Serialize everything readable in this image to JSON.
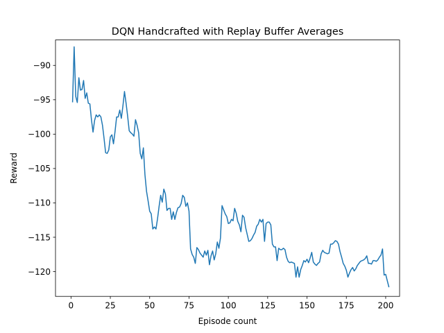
{
  "chart_data": {
    "type": "line",
    "title": "DQN Handcrafted with Replay Buffer Averages",
    "xlabel": "Episode count",
    "ylabel": "Reward",
    "xlim": [
      -9.85,
      208.85
    ],
    "ylim": [
      -123.6,
      -86.3
    ],
    "xticks": [
      0,
      25,
      50,
      75,
      100,
      125,
      150,
      175,
      200
    ],
    "yticks": [
      -90,
      -95,
      -100,
      -105,
      -110,
      -115,
      -120
    ],
    "xtick_labels": [
      "0",
      "25",
      "50",
      "75",
      "100",
      "125",
      "150",
      "175",
      "200"
    ],
    "ytick_labels": [
      "−90",
      "−95",
      "−100",
      "−105",
      "−110",
      "−115",
      "−120"
    ],
    "grid": false,
    "legend": "none",
    "series": [
      {
        "color": "#1f77b4",
        "x_start": 1,
        "y": [
          -95.3,
          -87.3,
          -94.5,
          -95.4,
          -91.8,
          -93.6,
          -93.5,
          -92.2,
          -94.8,
          -94.0,
          -95.5,
          -95.6,
          -97.9,
          -99.7,
          -98.0,
          -97.2,
          -97.5,
          -97.2,
          -97.5,
          -98.7,
          -100.6,
          -102.7,
          -102.8,
          -102.3,
          -100.4,
          -100.1,
          -101.4,
          -99.6,
          -97.5,
          -97.5,
          -96.5,
          -97.7,
          -95.9,
          -93.8,
          -95.5,
          -97.4,
          -99.5,
          -99.8,
          -100.0,
          -100.3,
          -97.9,
          -98.7,
          -99.8,
          -102.8,
          -103.6,
          -102.0,
          -105.9,
          -108.3,
          -109.7,
          -111.2,
          -111.6,
          -113.8,
          -113.5,
          -113.8,
          -112.3,
          -110.5,
          -108.9,
          -109.9,
          -108.0,
          -108.7,
          -111.1,
          -110.8,
          -110.8,
          -112.4,
          -111.3,
          -112.4,
          -111.4,
          -110.7,
          -110.6,
          -110.1,
          -108.9,
          -109.2,
          -110.5,
          -110.0,
          -111.2,
          -116.7,
          -117.5,
          -117.9,
          -118.8,
          -116.5,
          -116.8,
          -117.3,
          -117.6,
          -117.9,
          -117.0,
          -117.6,
          -116.9,
          -119.0,
          -117.7,
          -117.0,
          -118.3,
          -117.4,
          -115.7,
          -116.6,
          -115.1,
          -110.4,
          -111.0,
          -111.6,
          -112.0,
          -113.0,
          -112.9,
          -112.4,
          -112.6,
          -110.8,
          -111.5,
          -112.7,
          -113.2,
          -114.2,
          -111.8,
          -112.1,
          -113.6,
          -114.6,
          -115.6,
          -115.5,
          -115.2,
          -114.7,
          -114.3,
          -113.4,
          -113.1,
          -112.4,
          -112.8,
          -112.4,
          -115.6,
          -113.0,
          -112.8,
          -112.8,
          -113.2,
          -116.0,
          -116.4,
          -116.4,
          -118.4,
          -116.6,
          -116.8,
          -116.8,
          -116.6,
          -116.8,
          -117.9,
          -118.5,
          -118.7,
          -118.6,
          -118.7,
          -118.8,
          -120.8,
          -119.3,
          -120.8,
          -119.7,
          -119.1,
          -118.4,
          -118.6,
          -118.2,
          -118.7,
          -118.0,
          -117.2,
          -118.6,
          -118.9,
          -119.1,
          -118.8,
          -118.6,
          -117.4,
          -116.9,
          -117.2,
          -117.3,
          -117.4,
          -117.3,
          -116.0,
          -116.0,
          -115.8,
          -115.5,
          -115.6,
          -116.0,
          -117.1,
          -117.9,
          -118.8,
          -119.2,
          -119.8,
          -120.8,
          -120.2,
          -119.7,
          -119.4,
          -119.9,
          -119.6,
          -119.1,
          -118.8,
          -118.5,
          -118.4,
          -118.3,
          -118.1,
          -117.7,
          -118.8,
          -118.8,
          -118.9,
          -118.4,
          -118.4,
          -118.5,
          -118.3,
          -117.9,
          -117.6,
          -116.7,
          -120.5,
          -120.4,
          -121.3,
          -122.2
        ]
      }
    ]
  }
}
